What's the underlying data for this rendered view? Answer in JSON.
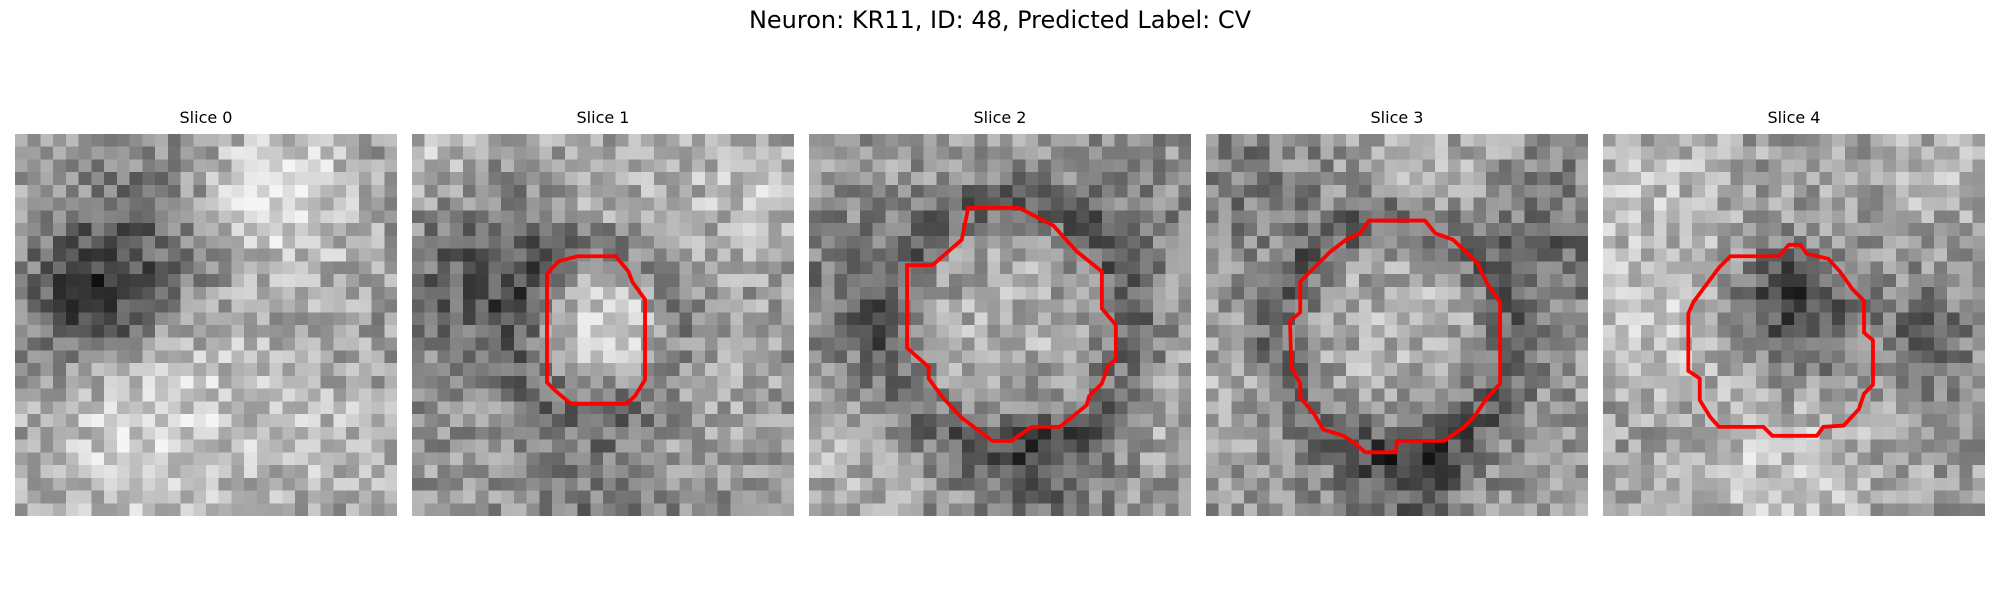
{
  "figure": {
    "title": "Neuron: KR11, ID: 48, Predicted Label: CV",
    "contour_color": "#ff0000"
  },
  "panels": [
    {
      "title": "Slice 0",
      "has_contour": false
    },
    {
      "title": "Slice 1",
      "has_contour": true
    },
    {
      "title": "Slice 2",
      "has_contour": true
    },
    {
      "title": "Slice 3",
      "has_contour": true
    },
    {
      "title": "Slice 4",
      "has_contour": true
    }
  ]
}
